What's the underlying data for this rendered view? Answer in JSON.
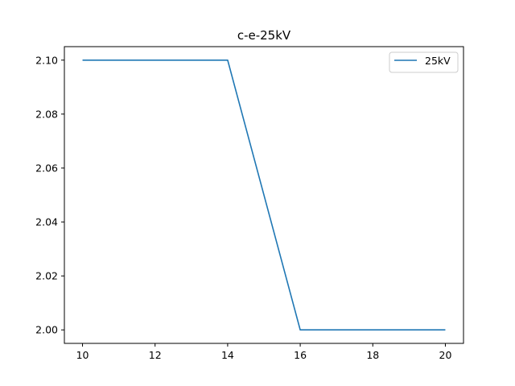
{
  "chart_data": {
    "type": "line",
    "title": "c-e-25kV",
    "xlabel": "",
    "ylabel": "",
    "xlim": [
      9.5,
      20.5
    ],
    "ylim": [
      1.995,
      2.105
    ],
    "xticks": [
      10,
      12,
      14,
      16,
      18,
      20
    ],
    "yticks": [
      2.0,
      2.02,
      2.04,
      2.06,
      2.08,
      2.1
    ],
    "xtick_labels": [
      "10",
      "12",
      "14",
      "16",
      "18",
      "20"
    ],
    "ytick_labels": [
      "2.00",
      "2.02",
      "2.04",
      "2.06",
      "2.08",
      "2.10"
    ],
    "grid": false,
    "legend_position": "top-right",
    "series": [
      {
        "name": "25kV",
        "color": "#1f77b4",
        "x": [
          10,
          12,
          14,
          16,
          18,
          20
        ],
        "y": [
          2.1,
          2.1,
          2.1,
          2.0,
          2.0,
          2.0
        ]
      }
    ]
  }
}
